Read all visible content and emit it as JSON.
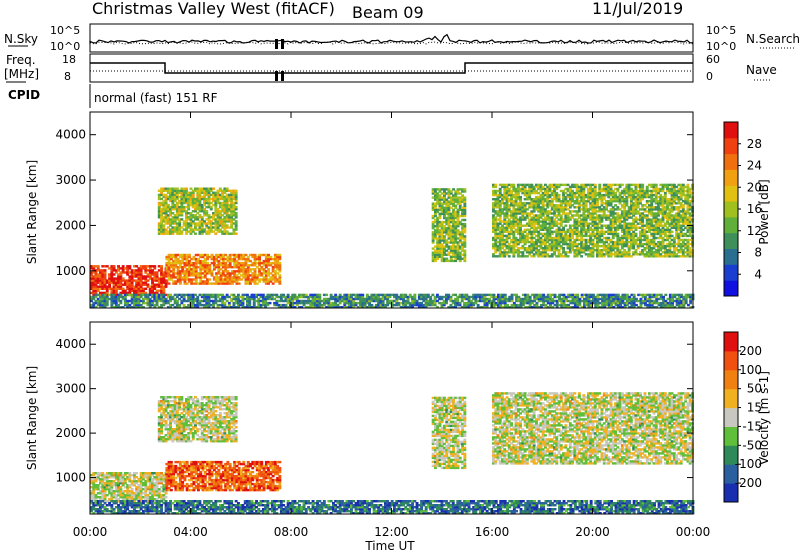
{
  "header": {
    "station": "Christmas Valley West (fitACF)",
    "beam": "Beam 09",
    "date": "11/Jul/2019"
  },
  "noise_panel": {
    "left_label": "N.Sky",
    "left_ticks": [
      "10^5",
      "10^0"
    ],
    "right_label": "N.Search",
    "right_ticks": [
      "10^5",
      "10^0"
    ]
  },
  "freq_panel": {
    "left_label_1": "Freq.",
    "left_label_2": "[MHz]",
    "left_ticks": [
      "18",
      "8"
    ],
    "right_label": "Nave",
    "right_ticks": [
      "60",
      "0"
    ]
  },
  "cpid": {
    "label": "CPID",
    "text": "normal (fast) 151 RF"
  },
  "x_axis": {
    "label": "Time UT",
    "ticks": [
      "00:00",
      "04:00",
      "08:00",
      "12:00",
      "16:00",
      "20:00",
      "00:00"
    ]
  },
  "chart_data": [
    {
      "type": "heatmap",
      "quantity": "Power",
      "ylabel": "Slant Range [km]",
      "xlabel": "Time UT",
      "xlim": [
        0,
        24
      ],
      "ylim": [
        180,
        4500
      ],
      "yticks": [
        "1000",
        "2000",
        "3000",
        "4000"
      ],
      "colorbar": {
        "label": "Power [dB]",
        "ticks": [
          "4",
          "8",
          "12",
          "16",
          "20",
          "24",
          "28"
        ],
        "colors": [
          "#1010e0",
          "#1a3fd0",
          "#2a6f90",
          "#3f8f5a",
          "#5faf3a",
          "#a0c020",
          "#e0c010",
          "#f0a010",
          "#f07010",
          "#f04010",
          "#e01010"
        ]
      },
      "regions": [
        {
          "t0": 0.0,
          "t1": 3.0,
          "r0": 450,
          "r1": 1100,
          "level": 0.9
        },
        {
          "t0": 3.0,
          "t1": 7.5,
          "r0": 700,
          "r1": 1350,
          "level": 0.72
        },
        {
          "t0": 2.7,
          "t1": 5.8,
          "r0": 1800,
          "r1": 2800,
          "level": 0.5
        },
        {
          "t0": 13.6,
          "t1": 14.9,
          "r0": 1200,
          "r1": 2800,
          "level": 0.45
        },
        {
          "t0": 16.0,
          "t1": 24.0,
          "r0": 1300,
          "r1": 2900,
          "level": 0.45
        },
        {
          "t0": 0.0,
          "t1": 24.0,
          "r0": 180,
          "r1": 480,
          "level": 0.3
        }
      ]
    },
    {
      "type": "heatmap",
      "quantity": "Velocity",
      "ylabel": "Slant Range [km]",
      "xlabel": "Time UT",
      "xlim": [
        0,
        24
      ],
      "ylim": [
        180,
        4500
      ],
      "yticks": [
        "1000",
        "2000",
        "3000",
        "4000"
      ],
      "colorbar": {
        "label": "Velocity [m s-1]",
        "ticks": [
          "200",
          "100",
          "50",
          "15",
          "-15",
          "-50",
          "-100",
          "-200"
        ],
        "colors": [
          "#1a2fb0",
          "#2a60a0",
          "#2f8a5a",
          "#5fbf3a",
          "#c8c8c0",
          "#f0b020",
          "#f08010",
          "#f05010",
          "#e01010"
        ]
      },
      "regions": [
        {
          "t0": 0.0,
          "t1": 3.0,
          "r0": 450,
          "r1": 1100,
          "level": 0.5
        },
        {
          "t0": 3.0,
          "t1": 7.5,
          "r0": 700,
          "r1": 1350,
          "level": 0.8
        },
        {
          "t0": 2.7,
          "t1": 5.8,
          "r0": 1800,
          "r1": 2800,
          "level": 0.5
        },
        {
          "t0": 13.6,
          "t1": 14.9,
          "r0": 1200,
          "r1": 2800,
          "level": 0.5
        },
        {
          "t0": 16.0,
          "t1": 24.0,
          "r0": 1300,
          "r1": 2900,
          "level": 0.5
        },
        {
          "t0": 0.0,
          "t1": 24.0,
          "r0": 180,
          "r1": 480,
          "level": 0.2
        }
      ]
    }
  ]
}
